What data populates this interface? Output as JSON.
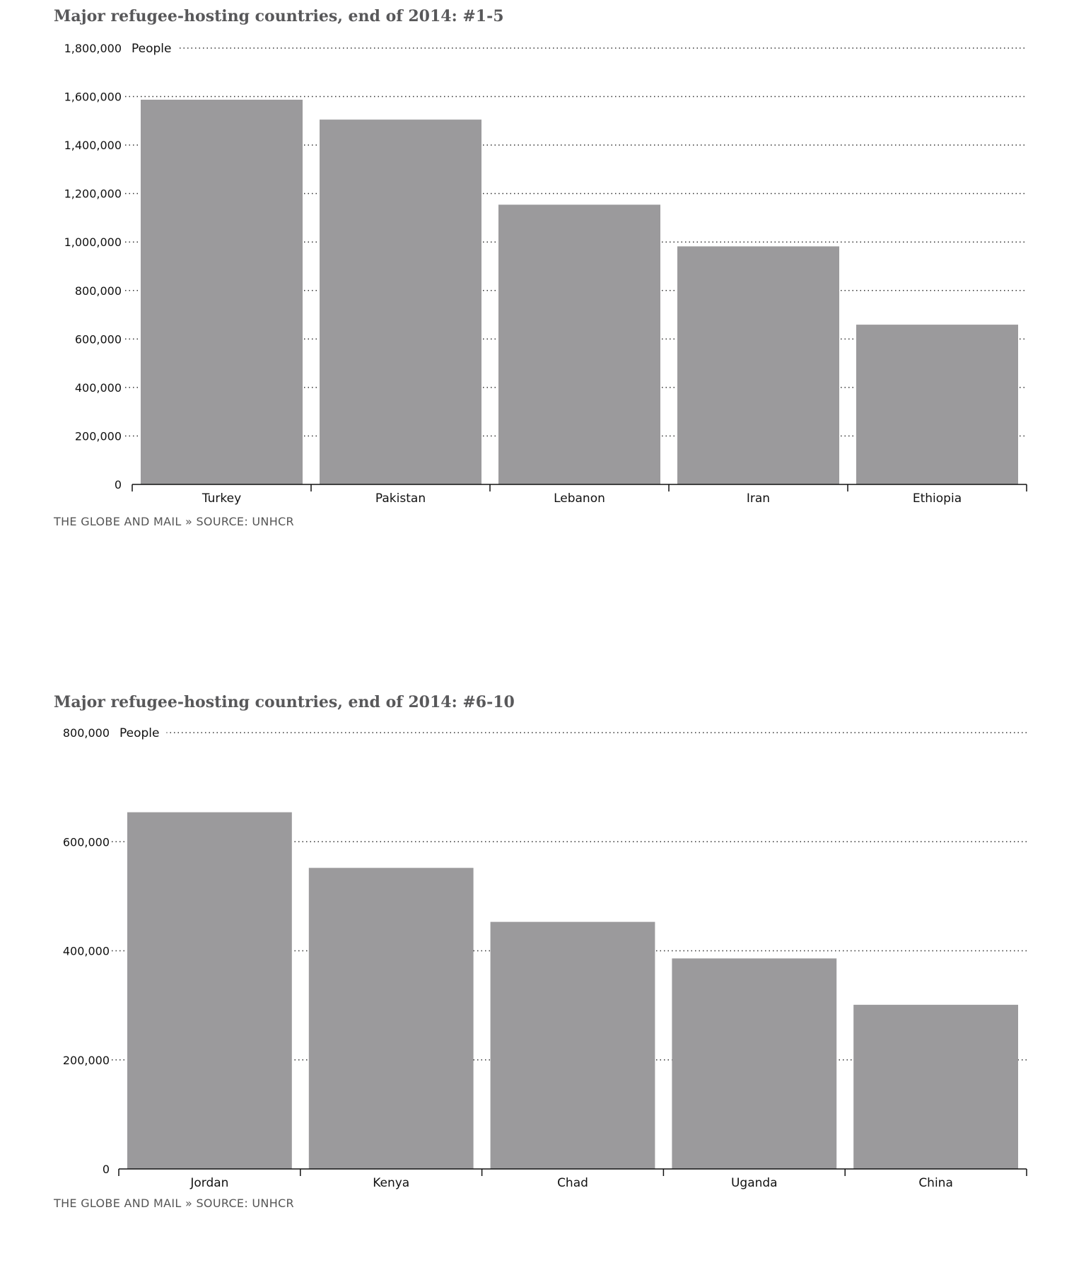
{
  "colors": {
    "bar": "#9b9a9c",
    "grid": "#333333",
    "axis": "#111111",
    "title": "#58585a"
  },
  "chart_data": [
    {
      "type": "bar",
      "title": "Major refugee-hosting countries, end of 2014: #1-5",
      "ylabel": "People",
      "ylim": [
        0,
        1800000
      ],
      "yticks": [
        0,
        200000,
        400000,
        600000,
        800000,
        1000000,
        1200000,
        1400000,
        1600000,
        1800000
      ],
      "ytick_labels": [
        "0",
        "200,000",
        "400,000",
        "600,000",
        "800,000",
        "1,000,000",
        "1,200,000",
        "1,400,000",
        "1,600,000",
        "1,800,000"
      ],
      "categories": [
        "Turkey",
        "Pakistan",
        "Lebanon",
        "Iran",
        "Ethiopia"
      ],
      "values": [
        1587000,
        1505000,
        1154000,
        982000,
        659000
      ],
      "grid": true,
      "source": "THE GLOBE AND MAIL » SOURCE: UNHCR"
    },
    {
      "type": "bar",
      "title": "Major refugee-hosting countries, end of 2014: #6-10",
      "ylabel": "People",
      "ylim": [
        0,
        800000
      ],
      "yticks": [
        0,
        200000,
        400000,
        600000,
        800000
      ],
      "ytick_labels": [
        "0",
        "200,000",
        "400,000",
        "600,000",
        "800,000"
      ],
      "categories": [
        "Jordan",
        "Kenya",
        "Chad",
        "Uganda",
        "China"
      ],
      "values": [
        654000,
        552000,
        453000,
        386000,
        301000
      ],
      "grid": true,
      "source": "THE GLOBE AND MAIL » SOURCE: UNHCR"
    }
  ]
}
